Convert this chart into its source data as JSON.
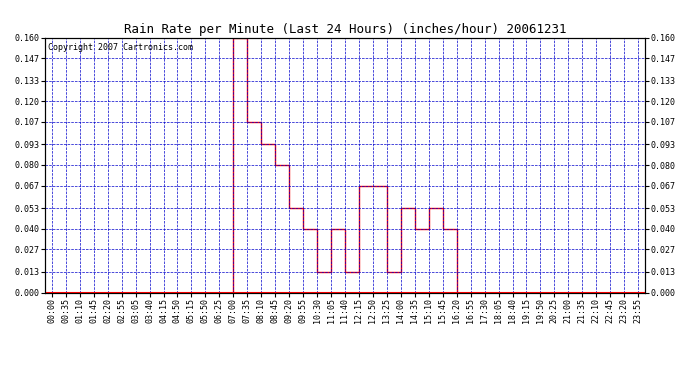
{
  "title": "Rain Rate per Minute (Last 24 Hours) (inches/hour) 20061231",
  "copyright": "Copyright 2007 Cartronics.com",
  "background_color": "#ffffff",
  "plot_bg_color": "#ffffff",
  "grid_color": "#0000cc",
  "line_color": "#ff0000",
  "ylim": [
    0.0,
    0.16
  ],
  "yticks": [
    0.0,
    0.013,
    0.027,
    0.04,
    0.053,
    0.067,
    0.08,
    0.093,
    0.107,
    0.12,
    0.133,
    0.147,
    0.16
  ],
  "x_labels": [
    "00:00",
    "00:35",
    "01:10",
    "01:45",
    "02:20",
    "02:55",
    "03:05",
    "03:40",
    "04:15",
    "04:50",
    "05:15",
    "05:50",
    "06:25",
    "07:00",
    "07:35",
    "08:10",
    "08:45",
    "09:20",
    "09:55",
    "10:30",
    "11:05",
    "11:40",
    "12:15",
    "12:50",
    "13:25",
    "14:00",
    "14:35",
    "15:10",
    "15:45",
    "16:20",
    "16:55",
    "17:30",
    "18:05",
    "18:40",
    "19:15",
    "19:50",
    "20:25",
    "21:00",
    "21:35",
    "22:10",
    "22:45",
    "23:20",
    "23:55"
  ],
  "data_values": [
    0,
    0,
    0,
    0,
    0,
    0,
    0,
    0,
    0,
    0,
    0,
    0,
    0,
    0,
    0.16,
    0.107,
    0.093,
    0.08,
    0.053,
    0.04,
    0.013,
    0.04,
    0.013,
    0.067,
    0.067,
    0.013,
    0.053,
    0.04,
    0.053,
    0.04,
    0,
    0,
    0,
    0,
    0,
    0,
    0,
    0,
    0,
    0,
    0,
    0,
    0
  ],
  "title_fontsize": 9,
  "tick_fontsize": 6,
  "copyright_fontsize": 6
}
